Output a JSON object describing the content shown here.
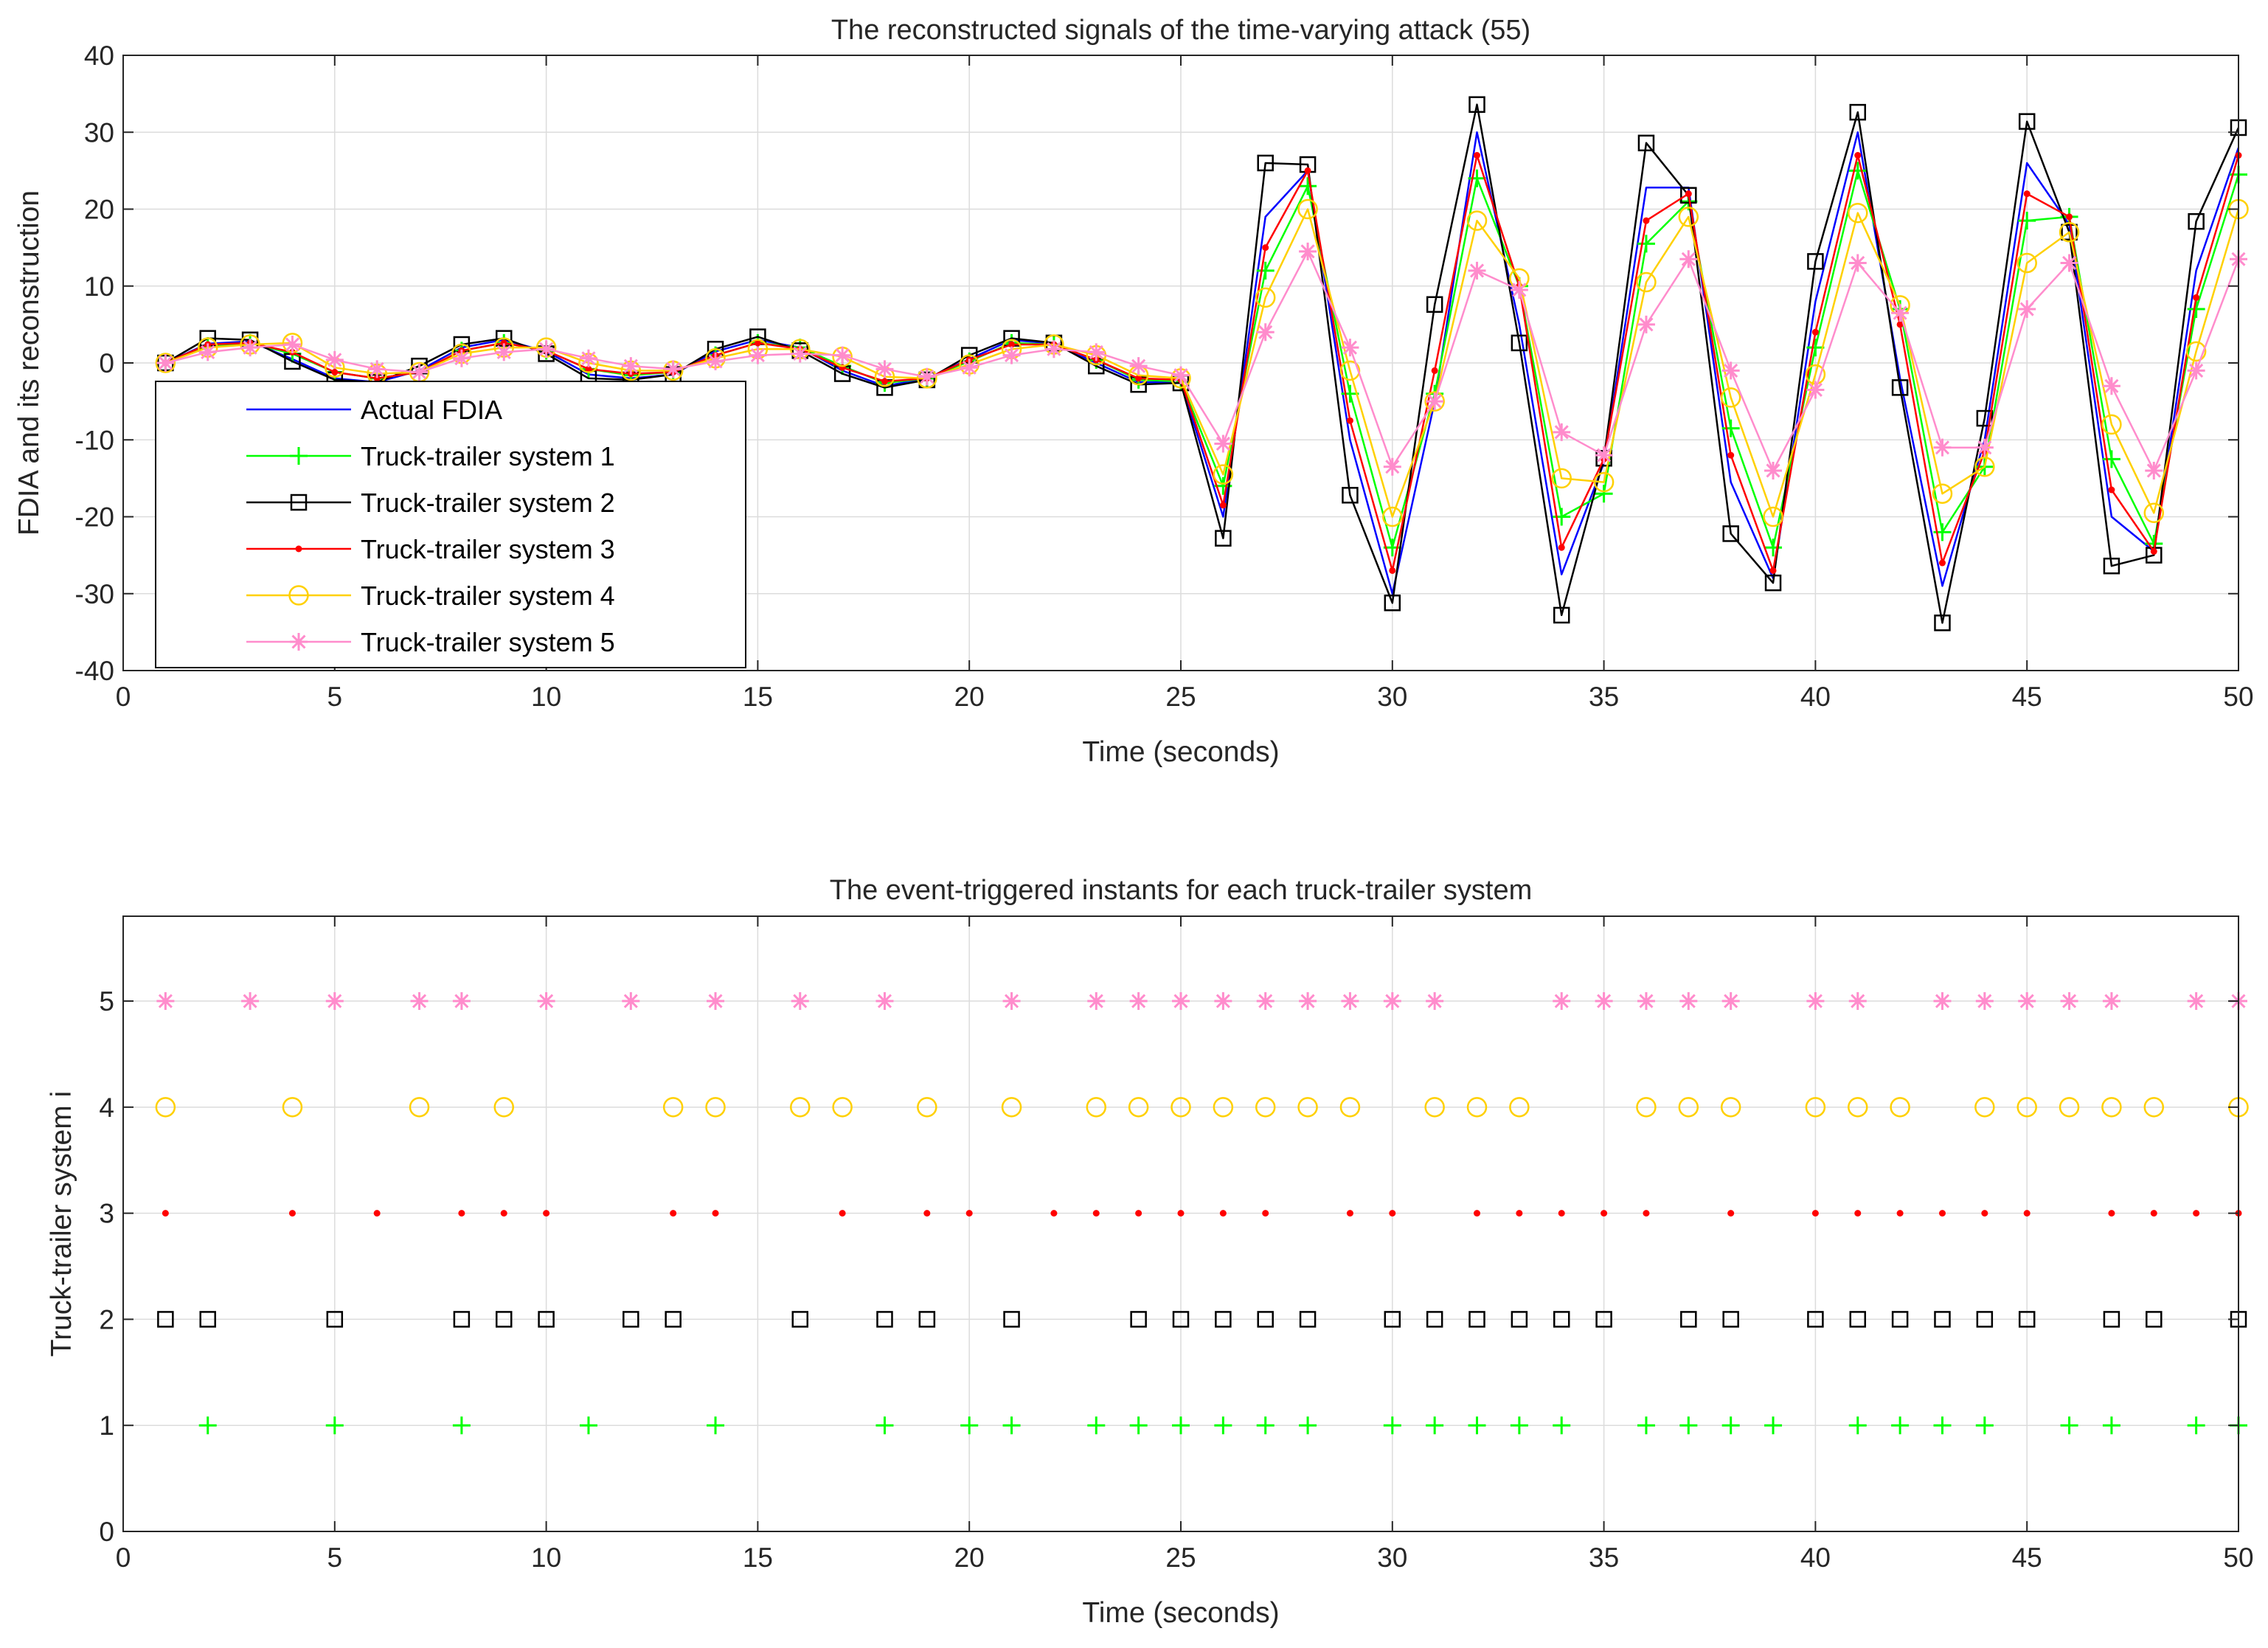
{
  "chart_data": [
    {
      "type": "line",
      "title": "The reconstructed signals of the time-varying attack (55)",
      "xlabel": "Time (seconds)",
      "ylabel": "FDIA and its reconstruction",
      "xlim": [
        0,
        50
      ],
      "ylim": [
        -40,
        40
      ],
      "xticks": [
        0,
        5,
        10,
        15,
        20,
        25,
        30,
        35,
        40,
        45,
        50
      ],
      "yticks": [
        -40,
        -30,
        -20,
        -10,
        0,
        10,
        20,
        30,
        40
      ],
      "grid": true,
      "legend_position": "bottom-left",
      "x": [
        1,
        2,
        3,
        4,
        5,
        6,
        7,
        8,
        9,
        10,
        11,
        12,
        13,
        14,
        15,
        16,
        17,
        18,
        19,
        20,
        21,
        22,
        23,
        24,
        25,
        26,
        27,
        28,
        29,
        30,
        31,
        32,
        33,
        34,
        35,
        36,
        37,
        38,
        39,
        40,
        41,
        42,
        43,
        44,
        45,
        46,
        47,
        48,
        49,
        50
      ],
      "series": [
        {
          "name": "Actual FDIA",
          "color": "#0000ff",
          "marker": "none",
          "values": [
            0,
            2.5,
            2.8,
            0.5,
            -2,
            -2.5,
            -1,
            2,
            3,
            1.5,
            -1.5,
            -2,
            -1.5,
            1.5,
            3,
            2,
            -1,
            -3,
            -2,
            0.5,
            3,
            2.5,
            0,
            -2.5,
            -2.5,
            -20,
            19,
            25,
            -10,
            -30,
            -5,
            30,
            5,
            -27.5,
            -13,
            22.8,
            22.8,
            -15.5,
            -28,
            8,
            30,
            -2,
            -29,
            -10,
            26,
            18,
            -20,
            -24.5,
            12,
            28
          ]
        },
        {
          "name": "Truck-trailer system 1",
          "color": "#00ff00",
          "marker": "plus",
          "values": [
            0,
            2.2,
            2.6,
            1.2,
            -1.2,
            -2,
            -1.2,
            1.6,
            2.6,
            1.6,
            -0.8,
            -1.6,
            -1.2,
            1,
            2.6,
            2,
            -0.4,
            -2.6,
            -2,
            0.2,
            2.6,
            2.4,
            0.4,
            -2.2,
            -2.4,
            -16,
            12,
            23,
            -4,
            -24,
            -4,
            24,
            10,
            -20,
            -17,
            15.5,
            21,
            -8.5,
            -24,
            2,
            25,
            7,
            -22,
            -13.5,
            18.5,
            19,
            -12.5,
            -23.5,
            7,
            24.5
          ]
        },
        {
          "name": "Truck-trailer system 2",
          "color": "#000000",
          "marker": "square",
          "values": [
            0,
            3.2,
            3,
            0.2,
            -2.2,
            -2.5,
            -0.4,
            2.4,
            3.2,
            1.2,
            -2,
            -2.2,
            -1.5,
            1.8,
            3.4,
            1.6,
            -1.4,
            -3.2,
            -2.2,
            1,
            3.2,
            2.6,
            -0.4,
            -2.8,
            -2.6,
            -22.8,
            26,
            25.8,
            -17.2,
            -31.2,
            7.6,
            33.6,
            2.6,
            -32.8,
            -12.4,
            28.6,
            21.8,
            -22.2,
            -28.6,
            13.2,
            32.6,
            -3.2,
            -33.8,
            -7.2,
            31.4,
            17,
            -26.4,
            -25,
            18.4,
            30.6
          ]
        },
        {
          "name": "Truck-trailer system 3",
          "color": "#ff0000",
          "marker": "dot",
          "values": [
            0,
            2.4,
            2.6,
            1.4,
            -1.2,
            -2,
            -1.2,
            1.6,
            2.6,
            1.6,
            -0.8,
            -1.4,
            -1.2,
            1,
            2.6,
            1.8,
            -0.6,
            -2.4,
            -2,
            0.4,
            2.4,
            2.4,
            0.4,
            -2,
            -2.2,
            -18.5,
            15,
            25,
            -7.5,
            -27,
            -1,
            27,
            10,
            -24,
            -12.5,
            18.5,
            22,
            -12,
            -27,
            4,
            27,
            5,
            -26,
            -11.5,
            22,
            19,
            -16.5,
            -24.5,
            8.5,
            27
          ]
        },
        {
          "name": "Truck-trailer system 4",
          "color": "#ffd000",
          "marker": "circle",
          "values": [
            0,
            2,
            2.4,
            2.6,
            -0.6,
            -1.4,
            -1.2,
            1.2,
            2,
            2,
            0,
            -1,
            -1,
            0.6,
            1.8,
            1.8,
            0.8,
            -1.8,
            -2,
            -0.2,
            1.8,
            2.4,
            1,
            -1.6,
            -2,
            -14.5,
            8.5,
            20,
            -1,
            -20,
            -5,
            18.5,
            11,
            -15,
            -15.5,
            10.5,
            19,
            -4.5,
            -20,
            -1.5,
            19.5,
            7.5,
            -17,
            -13.5,
            13,
            17,
            -8,
            -19.5,
            1.5,
            20
          ]
        },
        {
          "name": "Truck-trailer system 5",
          "color": "#ff8ccc",
          "marker": "star",
          "values": [
            0,
            1.4,
            2,
            2.4,
            0.4,
            -0.8,
            -1.2,
            0.6,
            1.4,
            1.8,
            0.6,
            -0.4,
            -0.8,
            0.2,
            1,
            1.2,
            1,
            -0.8,
            -1.8,
            -0.6,
            1,
            1.8,
            1.4,
            -0.4,
            -1.6,
            -10.5,
            4,
            14.5,
            2,
            -13.5,
            -5,
            12,
            9.5,
            -9,
            -12,
            5,
            13.5,
            -1,
            -14,
            -3.5,
            13,
            6.5,
            -11,
            -11,
            7,
            13,
            -3,
            -14,
            -1,
            13.5
          ]
        }
      ]
    },
    {
      "type": "scatter",
      "title": "The event-triggered instants for each truck-trailer system",
      "xlabel": "Time (seconds)",
      "ylabel": "Truck-trailer system i",
      "xlim": [
        0,
        50
      ],
      "ylim": [
        0,
        5.8
      ],
      "xticks": [
        0,
        5,
        10,
        15,
        20,
        25,
        30,
        35,
        40,
        45,
        50
      ],
      "yticks": [
        0,
        1,
        2,
        3,
        4,
        5
      ],
      "grid": true,
      "series": [
        {
          "name": "Truck-trailer system 1",
          "y": 1,
          "color": "#00ff00",
          "marker": "plus",
          "x": [
            2,
            5,
            8,
            11,
            14,
            18,
            20,
            21,
            23,
            24,
            25,
            26,
            27,
            28,
            30,
            31,
            32,
            33,
            34,
            36,
            37,
            38,
            39,
            41,
            42,
            43,
            44,
            46,
            47,
            49,
            50
          ]
        },
        {
          "name": "Truck-trailer system 2",
          "y": 2,
          "color": "#000000",
          "marker": "square",
          "x": [
            1,
            2,
            5,
            8,
            9,
            10,
            12,
            13,
            16,
            18,
            19,
            21,
            24,
            25,
            26,
            27,
            28,
            30,
            31,
            32,
            33,
            34,
            35,
            37,
            38,
            40,
            41,
            42,
            43,
            44,
            45,
            47,
            48,
            50
          ]
        },
        {
          "name": "Truck-trailer system 3",
          "y": 3,
          "color": "#ff0000",
          "marker": "dot",
          "x": [
            1,
            4,
            6,
            8,
            9,
            10,
            13,
            14,
            17,
            19,
            20,
            22,
            23,
            24,
            25,
            26,
            27,
            29,
            30,
            32,
            33,
            34,
            35,
            36,
            38,
            40,
            41,
            42,
            43,
            44,
            45,
            47,
            48,
            49,
            50
          ]
        },
        {
          "name": "Truck-trailer system 4",
          "y": 4,
          "color": "#ffd000",
          "marker": "circle",
          "x": [
            1,
            4,
            7,
            9,
            13,
            14,
            16,
            17,
            19,
            21,
            23,
            24,
            25,
            26,
            27,
            28,
            29,
            31,
            32,
            33,
            36,
            37,
            38,
            40,
            41,
            42,
            44,
            45,
            46,
            47,
            48,
            50
          ]
        },
        {
          "name": "Truck-trailer system 5",
          "y": 5,
          "color": "#ff8ccc",
          "marker": "star",
          "x": [
            1,
            3,
            5,
            7,
            8,
            10,
            12,
            14,
            16,
            18,
            21,
            23,
            24,
            25,
            26,
            27,
            28,
            29,
            30,
            31,
            34,
            35,
            36,
            37,
            38,
            40,
            41,
            43,
            44,
            45,
            46,
            47,
            49,
            50
          ]
        }
      ]
    }
  ]
}
